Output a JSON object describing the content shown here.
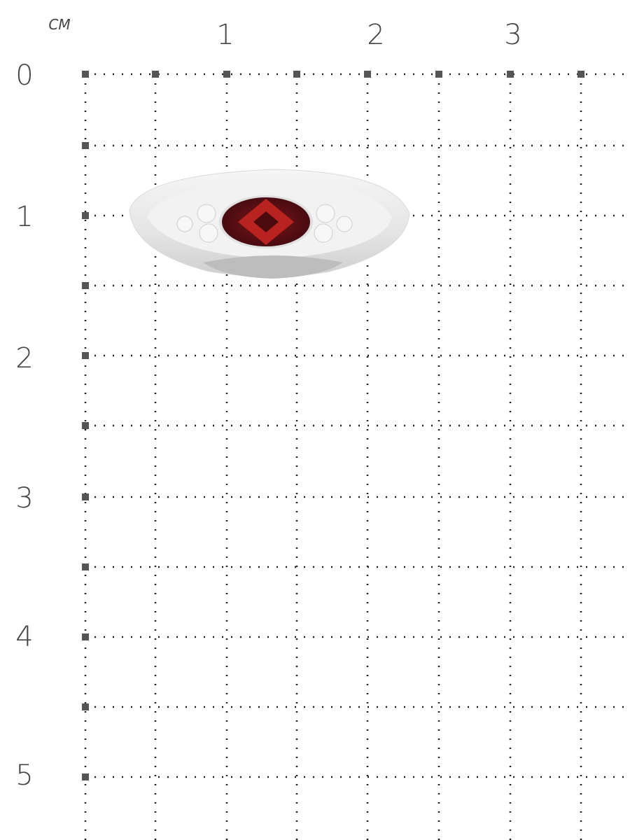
{
  "scale": {
    "unit": "CM",
    "top_labels": [
      "1",
      "2",
      "3"
    ],
    "left_labels": [
      "0",
      "1",
      "2",
      "3",
      "4",
      "5"
    ]
  },
  "photo": {
    "subject": "ring-with-garnet",
    "colors": {
      "metal": "#e9e9e9",
      "stone": "#5a0f16",
      "stone_highlight": "#b8231f",
      "accent_stones": "#f4f4f4",
      "grid": "#222222"
    }
  }
}
